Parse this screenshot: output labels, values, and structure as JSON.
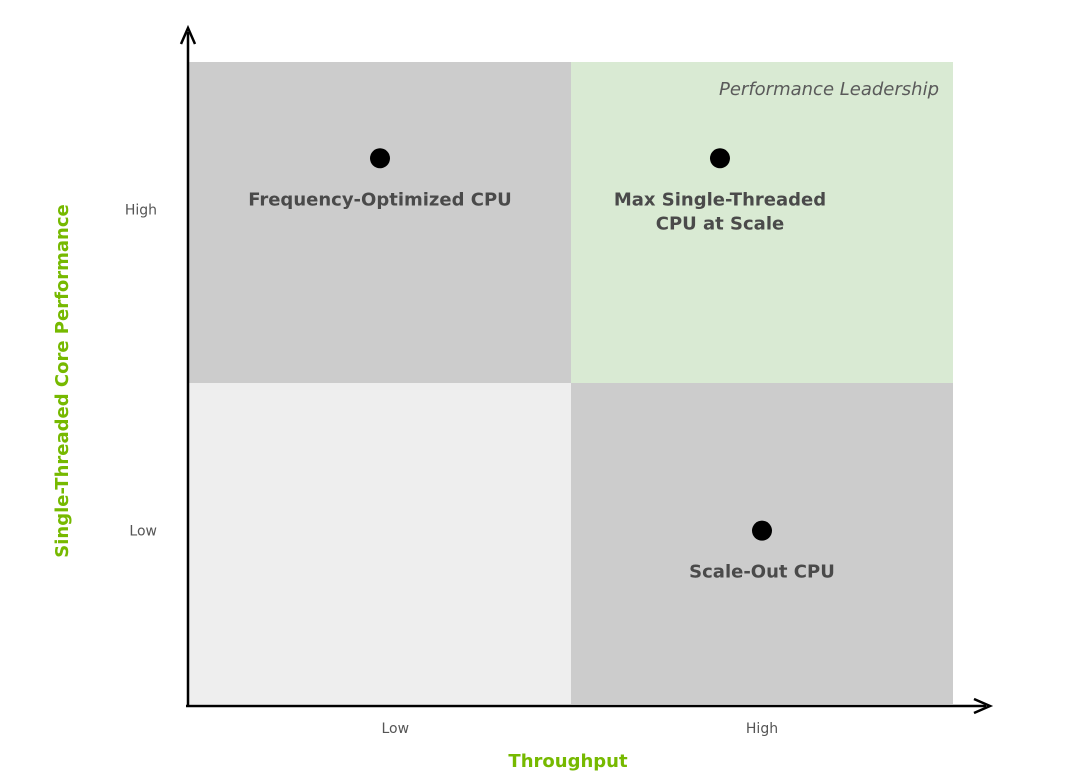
{
  "chart_data": {
    "type": "scatter",
    "title": "",
    "xlabel": "Throughput",
    "ylabel": "Single-Threaded Core Performance",
    "x_ticks": [
      "Low",
      "High"
    ],
    "y_ticks": [
      "Low",
      "High"
    ],
    "xlim": [
      0,
      2
    ],
    "ylim": [
      0,
      2
    ],
    "grid": false,
    "quadrants": [
      {
        "name": "low-throughput-high-performance",
        "x_range": [
          0,
          1
        ],
        "y_range": [
          1,
          2
        ],
        "color": "#cccccc",
        "label": ""
      },
      {
        "name": "high-throughput-high-performance",
        "x_range": [
          1,
          2
        ],
        "y_range": [
          1,
          2
        ],
        "color": "#d9ead3",
        "label": "Performance Leadership"
      },
      {
        "name": "low-throughput-low-performance",
        "x_range": [
          0,
          1
        ],
        "y_range": [
          0,
          1
        ],
        "color": "#eeeeee",
        "label": ""
      },
      {
        "name": "high-throughput-low-performance",
        "x_range": [
          1,
          2
        ],
        "y_range": [
          0,
          1
        ],
        "color": "#cccccc",
        "label": ""
      }
    ],
    "points": [
      {
        "label": "Frequency-Optimized CPU",
        "label_lines": [
          "Frequency-Optimized CPU"
        ],
        "x": 0.5,
        "y": 1.7
      },
      {
        "label": "Max Single-Threaded CPU at Scale",
        "label_lines": [
          "Max Single-Threaded",
          "CPU at Scale"
        ],
        "x": 1.39,
        "y": 1.7
      },
      {
        "label": "Scale-Out CPU",
        "label_lines": [
          "Scale-Out CPU"
        ],
        "x": 1.5,
        "y": 0.54
      }
    ],
    "colors": {
      "axis_title": "#76b900",
      "point": "#000000",
      "point_label": "#4a4a4a"
    }
  }
}
